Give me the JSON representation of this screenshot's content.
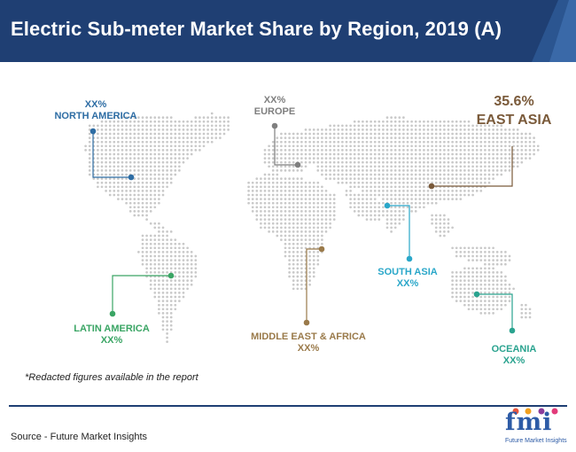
{
  "header": {
    "title": "Electric Sub-meter Market Share by Region, 2019 (A)"
  },
  "regions": {
    "north_america": {
      "value": "XX%",
      "name": "NORTH AMERICA",
      "color": "#2e6da4"
    },
    "europe": {
      "value": "XX%",
      "name": "EUROPE",
      "color": "#7f7f7f"
    },
    "east_asia": {
      "value": "35.6%",
      "name": "EAST ASIA",
      "color": "#7a5a3a"
    },
    "south_asia": {
      "value": "XX%",
      "name": "SOUTH ASIA",
      "color": "#2aa7c9"
    },
    "latin_america": {
      "value": "XX%",
      "name": "LATIN AMERICA",
      "color": "#3aa564"
    },
    "middle_east_africa": {
      "value": "XX%",
      "name": "MIDDLE EAST & AFRICA",
      "color": "#9a7a4a"
    },
    "oceania": {
      "value": "XX%",
      "name": "OCEANIA",
      "color": "#2aa38f"
    }
  },
  "footnote": "*Redacted figures available in the report",
  "source": "Source - Future Market Insights",
  "logo": {
    "letters": "fmi",
    "tagline": "Future Market Insights"
  },
  "colors": {
    "header_bg": "#1f3f73",
    "map_dots": "#c9c9c9"
  }
}
